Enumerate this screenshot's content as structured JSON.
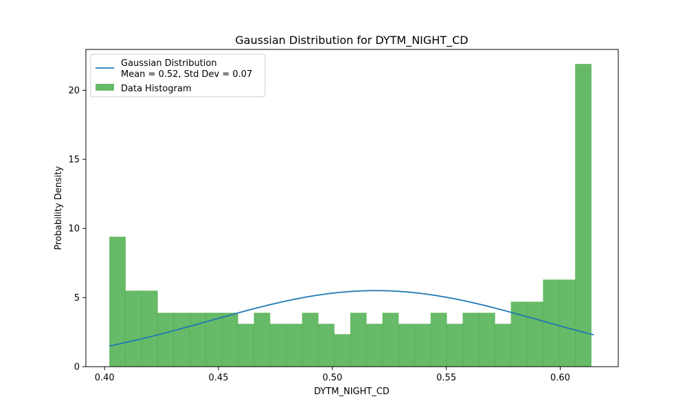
{
  "chart_data": {
    "type": "bar",
    "title": "Gaussian Distribution for DYTM_NIGHT_CD",
    "xlabel": "DYTM_NIGHT_CD",
    "ylabel": "Probability Density",
    "xlim": [
      0.3918,
      0.6255
    ],
    "ylim": [
      0,
      22.95
    ],
    "x_ticks": [
      "0.40",
      "0.45",
      "0.50",
      "0.55",
      "0.60"
    ],
    "x_tick_values": [
      0.4,
      0.45,
      0.5,
      0.55,
      0.6
    ],
    "y_ticks": [
      "0",
      "5",
      "10",
      "15",
      "20"
    ],
    "y_tick_values": [
      0,
      5,
      10,
      15,
      20
    ],
    "grid": false,
    "legend_position": "top-left",
    "colors": {
      "histogram": "#2ca02c",
      "curve": "#1f77b4"
    },
    "histogram": {
      "name": "Data Histogram",
      "bin_start": 0.4021,
      "bin_width": 0.00705,
      "values": [
        9.4,
        5.5,
        5.5,
        3.9,
        3.9,
        3.9,
        3.9,
        3.9,
        3.1,
        3.9,
        3.1,
        3.1,
        3.9,
        3.1,
        2.35,
        3.9,
        3.1,
        3.9,
        3.1,
        3.1,
        3.9,
        3.1,
        3.9,
        3.9,
        3.1,
        4.7,
        4.7,
        6.3,
        6.3,
        21.9
      ]
    },
    "gaussian": {
      "name_line1": "Gaussian Distribution",
      "name_line2": "Mean = 0.52, Std Dev = 0.07",
      "mean": 0.519,
      "std": 0.0725,
      "x_range": [
        0.4021,
        0.6147
      ]
    }
  }
}
